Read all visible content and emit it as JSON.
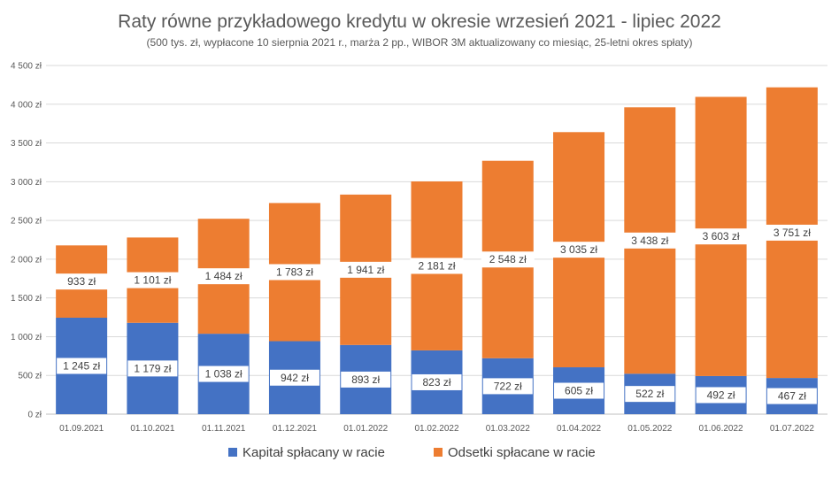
{
  "chart_data": {
    "type": "bar",
    "stacked": true,
    "title": "Raty równe przykładowego kredytu w okresie wrzesień 2021 - lipiec 2022",
    "subtitle": "(500 tys. zł, wypłacone 10 sierpnia 2021 r., marża 2 pp., WIBOR 3M aktualizowany co miesiąc, 25-letni okres spłaty)",
    "categories": [
      "01.09.2021",
      "01.10.2021",
      "01.11.2021",
      "01.12.2021",
      "01.01.2022",
      "01.02.2022",
      "01.03.2022",
      "01.04.2022",
      "01.05.2022",
      "01.06.2022",
      "01.07.2022"
    ],
    "series": [
      {
        "name": "Kapitał spłacany w racie",
        "color": "#4472c4",
        "values": [
          1245,
          1179,
          1038,
          942,
          893,
          823,
          722,
          605,
          522,
          492,
          467
        ],
        "labels": [
          "1 245 zł",
          "1 179 zł",
          "1 038 zł",
          "942 zł",
          "893 zł",
          "823 zł",
          "722 zł",
          "605 zł",
          "522 zł",
          "492 zł",
          "467 zł"
        ]
      },
      {
        "name": "Odsetki spłacane w racie",
        "color": "#ed7d31",
        "values": [
          933,
          1101,
          1484,
          1783,
          1941,
          2181,
          2548,
          3035,
          3438,
          3603,
          3751
        ],
        "labels": [
          "933 zł",
          "1 101 zł",
          "1 484 zł",
          "1 783 zł",
          "1 941 zł",
          "2 181 zł",
          "2 548 zł",
          "3 035 zł",
          "3 438 zł",
          "3 603 zł",
          "3 751 zł"
        ]
      }
    ],
    "ylim": [
      0,
      4500
    ],
    "yticks": [
      0,
      500,
      1000,
      1500,
      2000,
      2500,
      3000,
      3500,
      4000,
      4500
    ],
    "ytick_labels": [
      "0 zł",
      "500 zł",
      "1 000 zł",
      "1 500 zł",
      "2 000 zł",
      "2 500 zł",
      "3 000 zł",
      "3 500 zł",
      "4 000 zł",
      "4 500 zł"
    ],
    "grid": true,
    "legend": "bottom"
  }
}
